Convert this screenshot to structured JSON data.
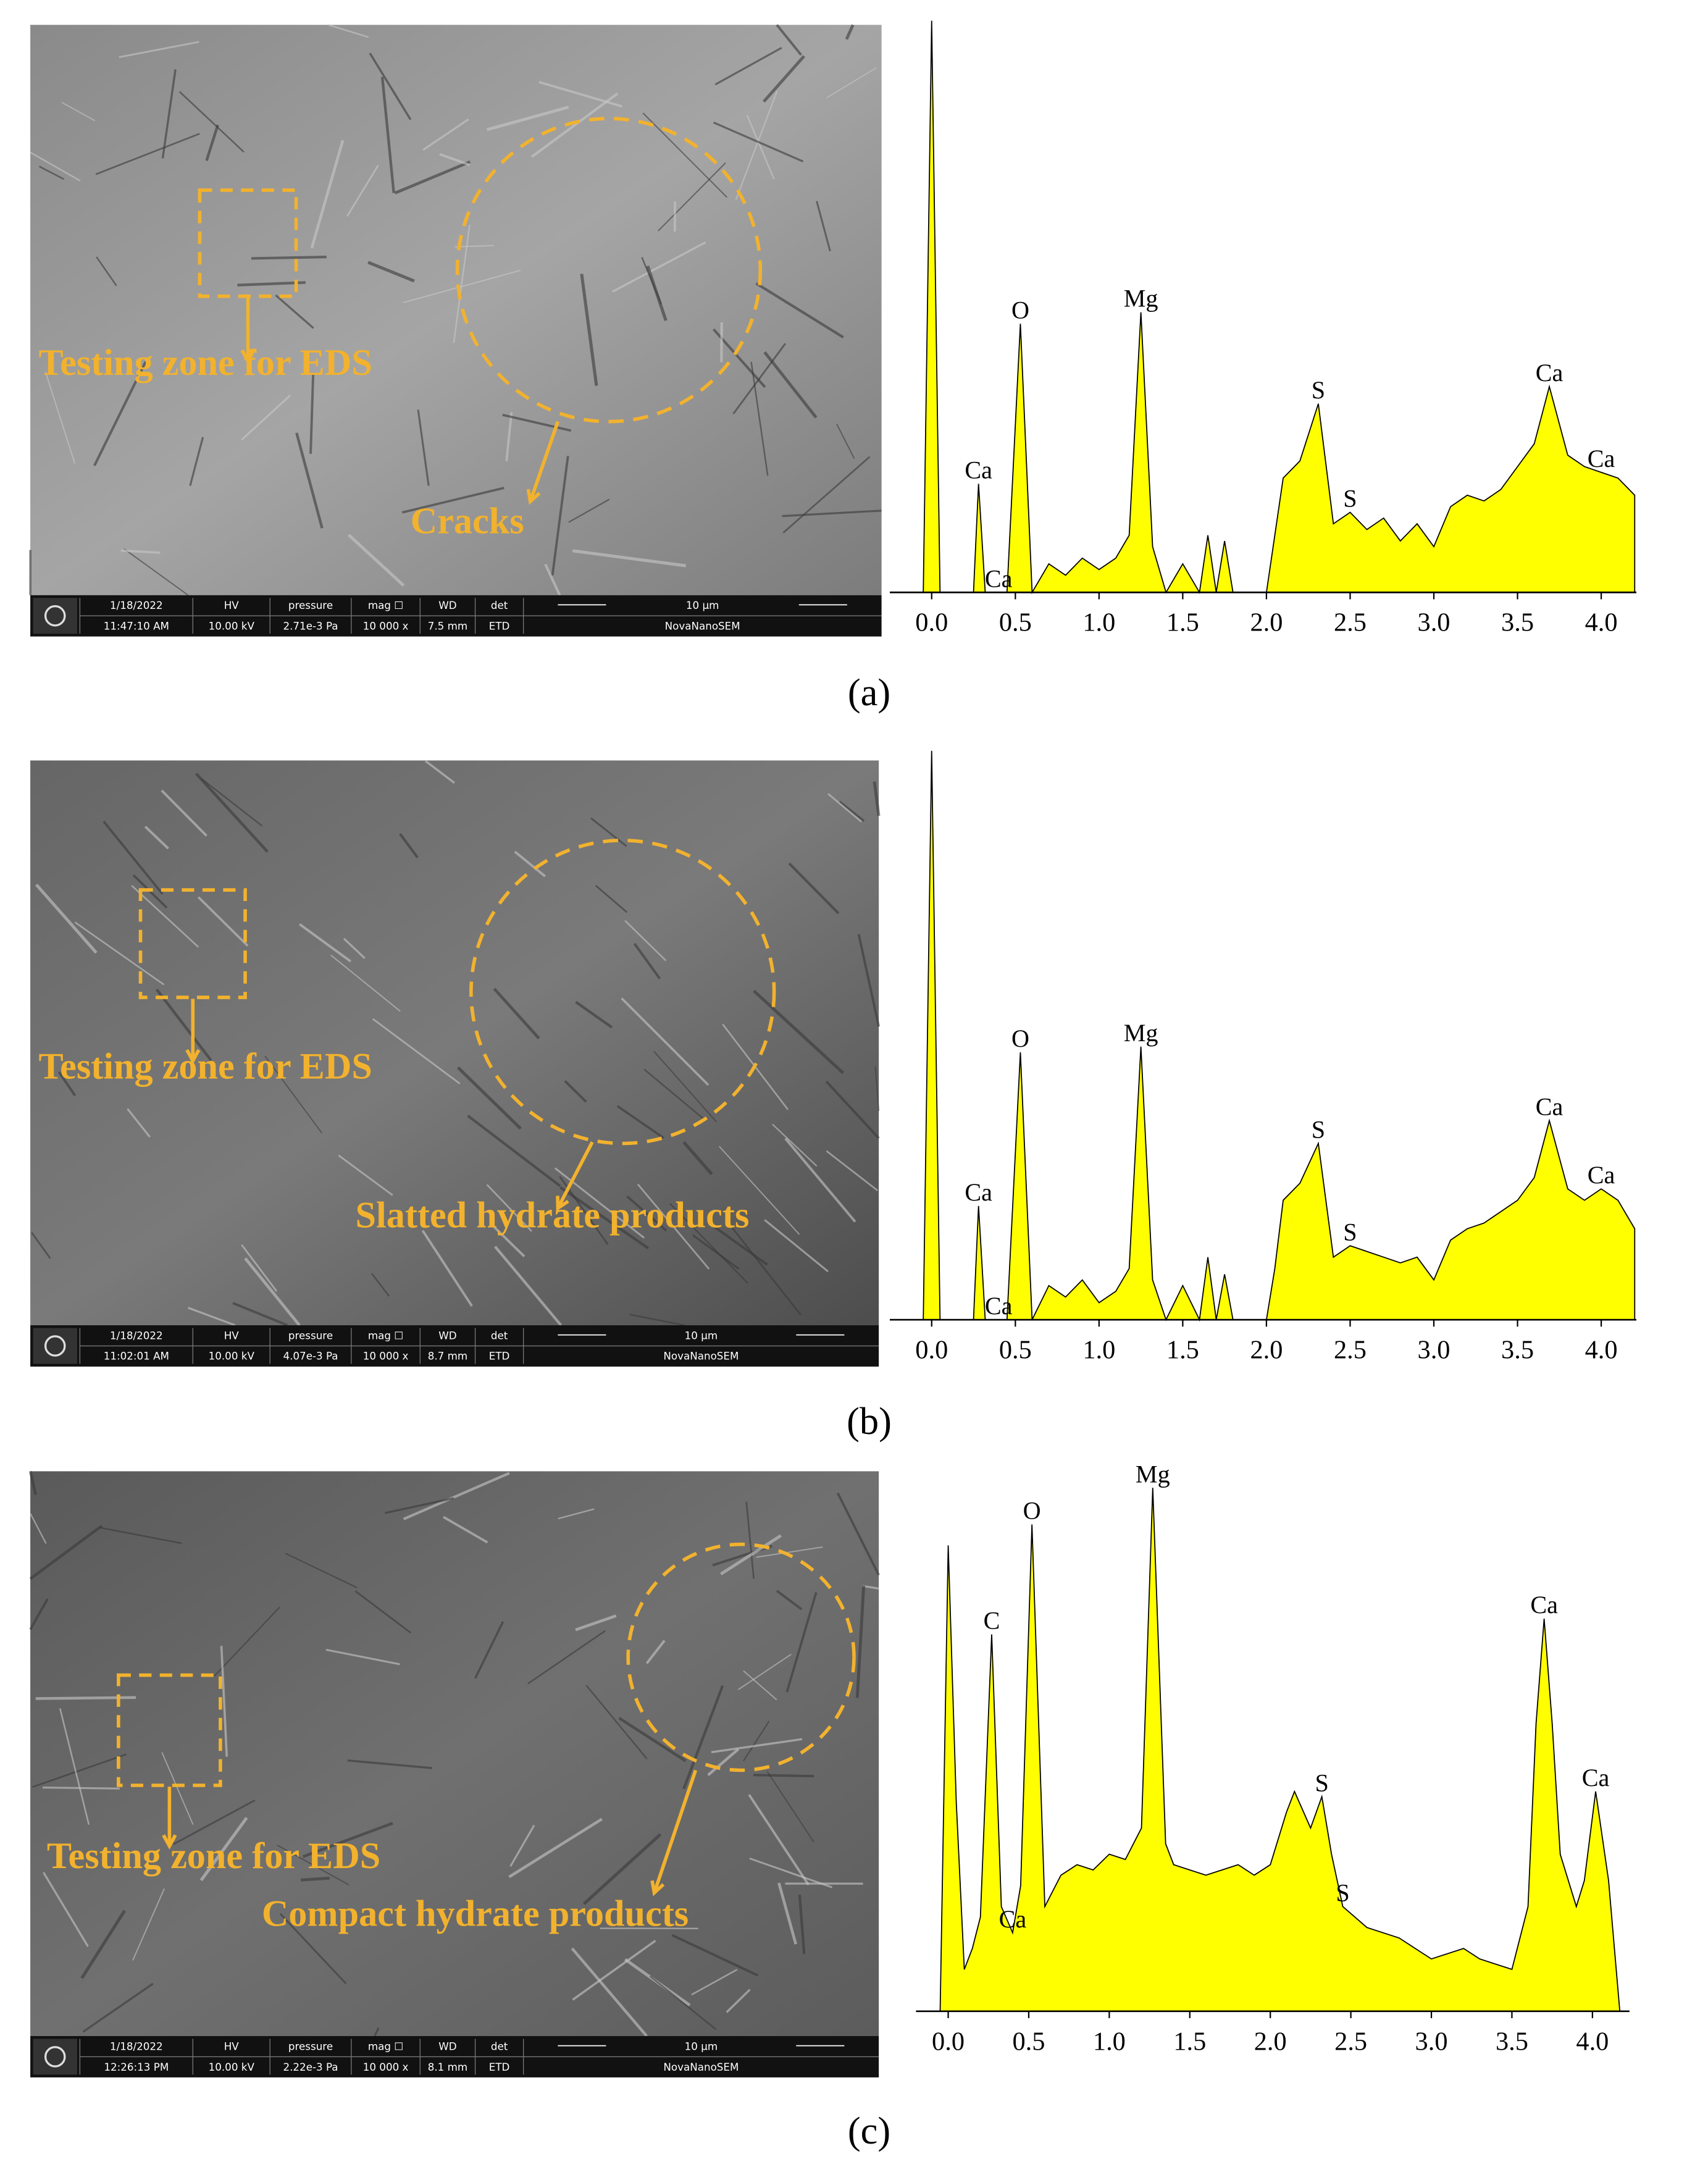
{
  "panels": [
    {
      "label": "(a)",
      "sem": {
        "labels": [
          "Testing zone for EDS",
          "Cracks"
        ],
        "info_bar": {
          "headers": [
            "1/18/2022",
            "HV",
            "pressure",
            "mag ☐",
            "WD",
            "det",
            "10 μm"
          ],
          "values": [
            "11:47:10 AM",
            "10.00 kV",
            "2.71e-3 Pa",
            "10 000 x",
            "7.5 mm",
            "ETD",
            "NovaNanoSEM"
          ]
        }
      }
    },
    {
      "label": "(b)",
      "sem": {
        "labels": [
          "Testing zone for EDS",
          "Slatted hydrate products"
        ],
        "info_bar": {
          "headers": [
            "1/18/2022",
            "HV",
            "pressure",
            "mag ☐",
            "WD",
            "det",
            "10 μm"
          ],
          "values": [
            "11:02:01 AM",
            "10.00 kV",
            "4.07e-3 Pa",
            "10 000 x",
            "8.7 mm",
            "ETD",
            "NovaNanoSEM"
          ]
        }
      }
    },
    {
      "label": "(c)",
      "sem": {
        "labels": [
          "Testing zone for EDS",
          "Compact hydrate products"
        ],
        "info_bar": {
          "headers": [
            "1/18/2022",
            "HV",
            "pressure",
            "mag ☐",
            "WD",
            "det",
            "10 μm"
          ],
          "values": [
            "12:26:13 PM",
            "10.00 kV",
            "2.22e-3 Pa",
            "10 000 x",
            "8.1 mm",
            "ETD",
            "NovaNanoSEM"
          ]
        }
      }
    }
  ],
  "chart_data": [
    {
      "type": "area",
      "color": "#ffff00",
      "x": [
        -0.2,
        -0.05,
        0,
        0.05,
        0.1,
        0.2,
        0.25,
        0.28,
        0.32,
        0.4,
        0.45,
        0.53,
        0.6,
        0.7,
        0.8,
        0.9,
        1.0,
        1.1,
        1.18,
        1.25,
        1.32,
        1.4,
        1.5,
        1.6,
        1.65,
        1.7,
        1.75,
        1.8,
        1.9,
        2.0,
        2.05,
        2.1,
        2.2,
        2.31,
        2.4,
        2.5,
        2.6,
        2.7,
        2.8,
        2.9,
        3.0,
        3.1,
        3.2,
        3.3,
        3.4,
        3.5,
        3.6,
        3.69,
        3.8,
        3.9,
        4.0,
        4.1,
        4.2
      ],
      "values": [
        0,
        0,
        100,
        0,
        0,
        0,
        0,
        19,
        0,
        0,
        0,
        47,
        0,
        5,
        3,
        6,
        4,
        6,
        10,
        49,
        8,
        0,
        5,
        0,
        10,
        0,
        9,
        0,
        0,
        0,
        10,
        20,
        23,
        33,
        12,
        14,
        11,
        13,
        9,
        12,
        8,
        15,
        17,
        16,
        18,
        22,
        26,
        36,
        24,
        22,
        21,
        20,
        17
      ],
      "xlim": [
        -0.25,
        4.21
      ],
      "ylim": [
        0,
        100
      ],
      "xticks": [
        {
          "value": 0,
          "label": "0.0"
        },
        0.5,
        {
          "value": 1,
          "label": "1.0"
        },
        1.5,
        {
          "value": 2,
          "label": "2.0"
        },
        2.5,
        {
          "value": 3,
          "label": "3.0"
        },
        3.5,
        {
          "value": 4,
          "label": "4.0"
        }
      ],
      "annotations": [
        {
          "text": "Ca",
          "x": 0.28
        },
        {
          "text": "Ca",
          "x": 0.4
        },
        {
          "text": "O",
          "x": 0.53
        },
        {
          "text": "Mg",
          "x": 1.25
        },
        {
          "text": "S",
          "x": 2.31
        },
        {
          "text": "S",
          "x": 2.5
        },
        {
          "text": "Ca",
          "x": 3.69
        },
        {
          "text": "Ca",
          "x": 4.0
        }
      ]
    },
    {
      "type": "area",
      "color": "#ffff00",
      "x": [
        -0.2,
        -0.05,
        0,
        0.05,
        0.1,
        0.2,
        0.25,
        0.28,
        0.32,
        0.4,
        0.45,
        0.53,
        0.6,
        0.7,
        0.8,
        0.9,
        1.0,
        1.1,
        1.18,
        1.25,
        1.32,
        1.4,
        1.5,
        1.6,
        1.65,
        1.7,
        1.75,
        1.8,
        1.9,
        2.0,
        2.05,
        2.1,
        2.2,
        2.31,
        2.4,
        2.5,
        2.6,
        2.7,
        2.8,
        2.9,
        3.0,
        3.1,
        3.2,
        3.3,
        3.4,
        3.5,
        3.6,
        3.69,
        3.8,
        3.9,
        4.0,
        4.1,
        4.2
      ],
      "values": [
        0,
        0,
        100,
        0,
        0,
        0,
        0,
        20,
        0,
        0,
        0,
        47,
        0,
        6,
        4,
        7,
        3,
        5,
        9,
        48,
        7,
        0,
        6,
        0,
        11,
        0,
        8,
        0,
        0,
        0,
        9,
        21,
        24,
        31,
        11,
        13,
        12,
        11,
        10,
        11,
        7,
        14,
        16,
        17,
        19,
        21,
        25,
        35,
        23,
        21,
        23,
        21,
        16
      ],
      "xlim": [
        -0.25,
        4.21
      ],
      "ylim": [
        0,
        100
      ],
      "xticks": [
        {
          "value": 0,
          "label": "0.0"
        },
        0.5,
        {
          "value": 1,
          "label": "1.0"
        },
        1.5,
        {
          "value": 2,
          "label": "2.0"
        },
        2.5,
        {
          "value": 3,
          "label": "3.0"
        },
        3.5,
        {
          "value": 4,
          "label": "4.0"
        }
      ],
      "annotations": [
        {
          "text": "Ca",
          "x": 0.28
        },
        {
          "text": "Ca",
          "x": 0.4
        },
        {
          "text": "O",
          "x": 0.53
        },
        {
          "text": "Mg",
          "x": 1.25
        },
        {
          "text": "S",
          "x": 2.31
        },
        {
          "text": "S",
          "x": 2.5
        },
        {
          "text": "Ca",
          "x": 3.69
        },
        {
          "text": "Ca",
          "x": 4.0
        }
      ]
    },
    {
      "type": "area",
      "color": "#ffff00",
      "x": [
        -0.05,
        0,
        0.05,
        0.1,
        0.15,
        0.2,
        0.27,
        0.33,
        0.4,
        0.45,
        0.52,
        0.6,
        0.7,
        0.8,
        0.9,
        1.0,
        1.1,
        1.2,
        1.27,
        1.35,
        1.4,
        1.5,
        1.6,
        1.7,
        1.8,
        1.9,
        2.0,
        2.1,
        2.15,
        2.25,
        2.32,
        2.38,
        2.45,
        2.6,
        2.8,
        3.0,
        3.2,
        3.3,
        3.5,
        3.6,
        3.65,
        3.7,
        3.75,
        3.8,
        3.9,
        3.95,
        4.02,
        4.1,
        4.17
      ],
      "values": [
        0,
        89,
        40,
        8,
        12,
        18,
        72,
        20,
        15,
        24,
        93,
        20,
        26,
        28,
        27,
        30,
        29,
        35,
        100,
        32,
        28,
        27,
        26,
        27,
        28,
        26,
        28,
        38,
        42,
        35,
        41,
        30,
        20,
        16,
        14,
        10,
        12,
        10,
        8,
        20,
        55,
        75,
        55,
        30,
        20,
        25,
        42,
        25,
        0
      ],
      "xlim": [
        -0.2,
        4.23
      ],
      "ylim": [
        0,
        100
      ],
      "xticks": [
        {
          "value": 0,
          "label": "0.0"
        },
        0.5,
        {
          "value": 1,
          "label": "1.0"
        },
        1.5,
        {
          "value": 2,
          "label": "2.0"
        },
        2.5,
        {
          "value": 3,
          "label": "3.0"
        },
        3.5,
        {
          "value": 4,
          "label": "4.0"
        }
      ],
      "annotations": [
        {
          "text": "C",
          "x": 0.27
        },
        {
          "text": "Ca",
          "x": 0.4
        },
        {
          "text": "O",
          "x": 0.52
        },
        {
          "text": "Mg",
          "x": 1.27
        },
        {
          "text": "S",
          "x": 2.32
        },
        {
          "text": "S",
          "x": 2.45
        },
        {
          "text": "Ca",
          "x": 3.7
        },
        {
          "text": "Ca",
          "x": 4.02
        }
      ]
    }
  ]
}
